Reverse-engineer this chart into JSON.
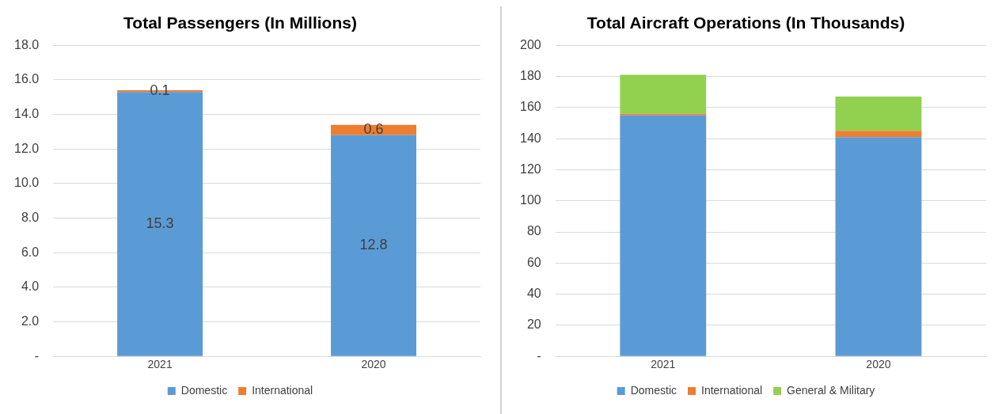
{
  "chart_data": [
    {
      "type": "bar",
      "title": "Total Passengers (In Millions)",
      "categories": [
        "2021",
        "2020"
      ],
      "stacked": true,
      "data_labels": true,
      "grid": "y",
      "legend": "bottom",
      "ylim": [
        0,
        18
      ],
      "yticks": [
        {
          "value": 0,
          "label": "-"
        },
        {
          "value": 2,
          "label": "2.0"
        },
        {
          "value": 4,
          "label": "4.0"
        },
        {
          "value": 6,
          "label": "6.0"
        },
        {
          "value": 8,
          "label": "8.0"
        },
        {
          "value": 10,
          "label": "10.0"
        },
        {
          "value": 12,
          "label": "12.0"
        },
        {
          "value": 14,
          "label": "14.0"
        },
        {
          "value": 16,
          "label": "16.0"
        },
        {
          "value": 18,
          "label": "18.0"
        }
      ],
      "series": [
        {
          "name": "Domestic",
          "color": "#5b9bd5",
          "values": [
            15.3,
            12.8
          ]
        },
        {
          "name": "International",
          "color": "#ed7d31",
          "values": [
            0.1,
            0.6
          ]
        }
      ]
    },
    {
      "type": "bar",
      "title": "Total Aircraft Operations (In Thousands)",
      "categories": [
        "2021",
        "2020"
      ],
      "stacked": true,
      "grid": "y",
      "legend": "bottom",
      "ylim": [
        0,
        200
      ],
      "yticks": [
        {
          "value": 0,
          "label": "-"
        },
        20,
        40,
        60,
        80,
        100,
        120,
        140,
        160,
        180,
        200
      ],
      "series": [
        {
          "name": "Domestic",
          "color": "#5b9bd5",
          "values": [
            155,
            141
          ]
        },
        {
          "name": "International",
          "color": "#ed7d31",
          "values": [
            1,
            4
          ]
        },
        {
          "name": "General & Military",
          "color": "#92d050",
          "values": [
            25,
            22
          ]
        }
      ]
    }
  ]
}
